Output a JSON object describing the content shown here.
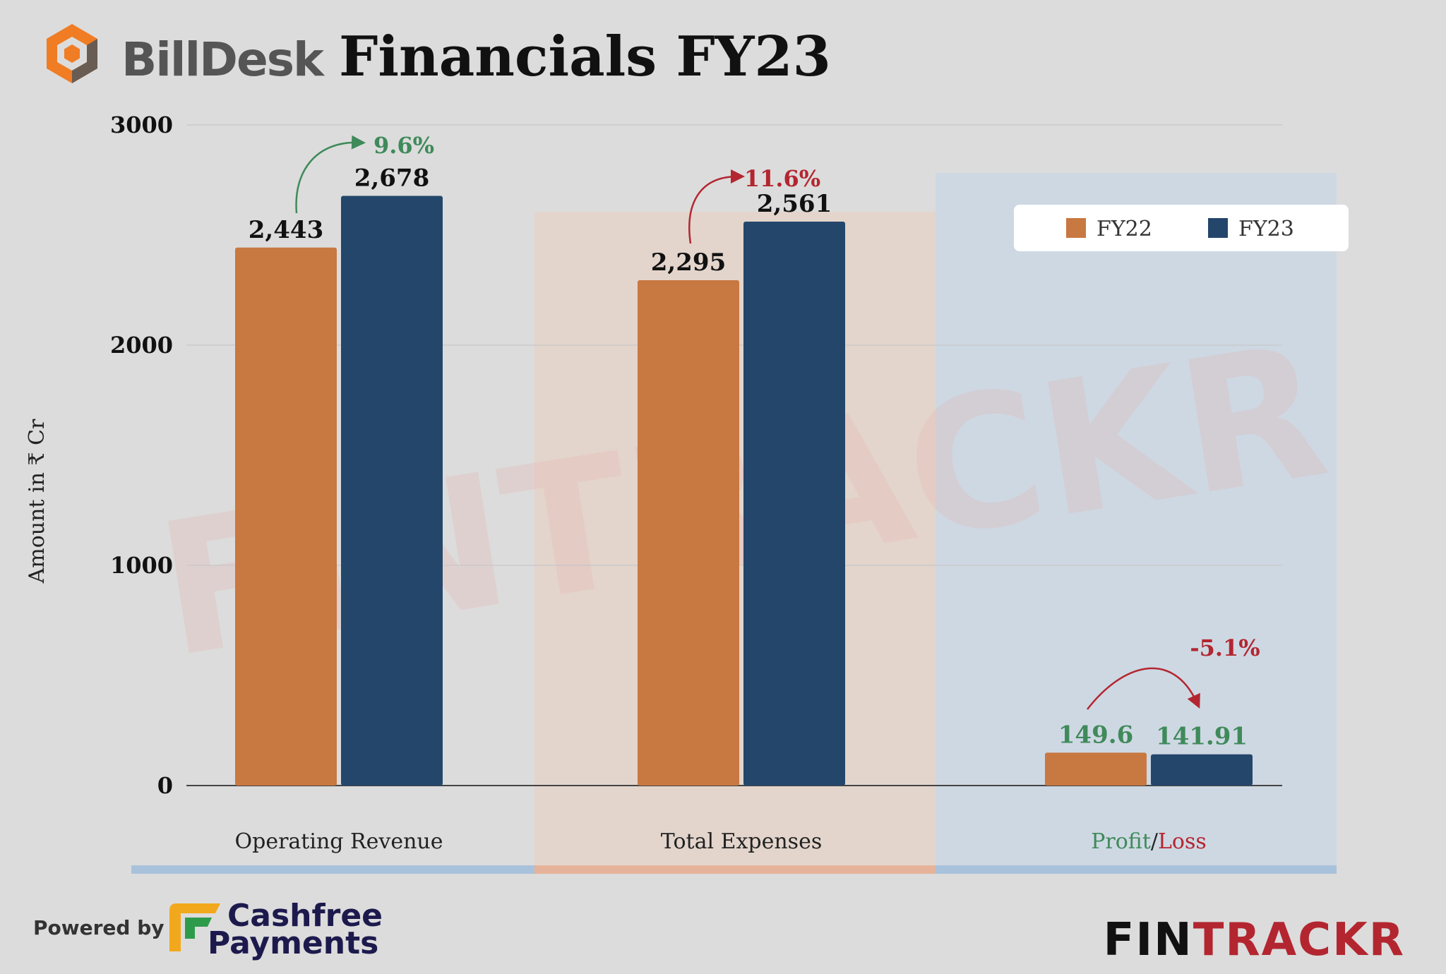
{
  "header": {
    "brand": "BillDesk",
    "title": "Financials FY23"
  },
  "footer": {
    "powered_by": "Powered by",
    "partner_line1": "Cashfree",
    "partner_line2": "Payments",
    "watermark_brand": "FINTRACKR",
    "brand_fin": "FIN",
    "brand_trackr": "TRACKR"
  },
  "colors": {
    "fy22": "#c87841",
    "fy23": "#24466b",
    "growth_up": "#3f8a5a",
    "growth_down": "#b32630",
    "section_blue": "#a9c2dc",
    "section_orange": "#e6b39a",
    "brand_orange": "#f07c23",
    "brand_grey": "#555555"
  },
  "chart_data": {
    "type": "bar",
    "title": "Financials FY23",
    "ylabel": "Amount in ₹ Cr",
    "xlabel": "",
    "ylim": [
      0,
      3000
    ],
    "yticks": [
      0,
      1000,
      2000,
      3000
    ],
    "ytick_labels": [
      "0",
      "1000",
      "2000",
      "3000"
    ],
    "categories": [
      "Operating Revenue",
      "Total Expenses",
      "Profit/Loss"
    ],
    "category_label_parts": {
      "profit": "Profit",
      "slash": "/",
      "loss": "Loss"
    },
    "series": [
      {
        "name": "FY22",
        "values": [
          2443,
          2295,
          149.6
        ],
        "labels": [
          "2,443",
          "2,295",
          "149.6"
        ]
      },
      {
        "name": "FY23",
        "values": [
          2678,
          2561,
          141.91
        ],
        "labels": [
          "2,678",
          "2,561",
          "141.91"
        ]
      }
    ],
    "growth": [
      "9.6%",
      "11.6%",
      "-5.1%"
    ],
    "legend": [
      "FY22",
      "FY23"
    ],
    "legend_position": "top-right",
    "grid": true
  }
}
